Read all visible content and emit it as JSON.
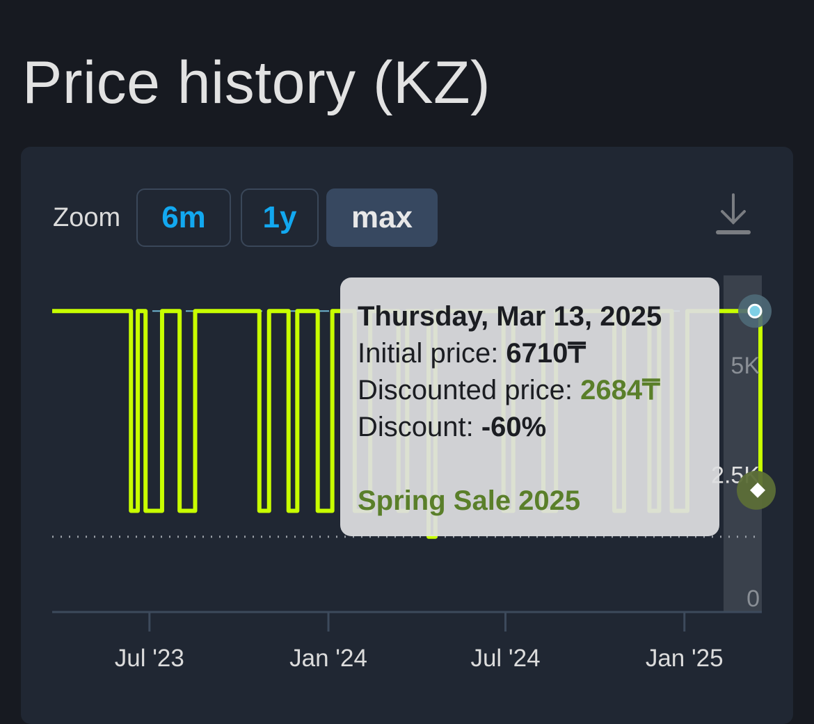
{
  "page_title": "Price history (KZ)",
  "toolbar": {
    "zoom_label": "Zoom",
    "buttons": [
      {
        "label": "6m",
        "active": false
      },
      {
        "label": "1y",
        "active": false
      },
      {
        "label": "max",
        "active": true
      }
    ],
    "download_icon": "download-icon"
  },
  "colors": {
    "line": "#c8ff00",
    "accent": "#12a8f0",
    "discount_green": "#5a7f2a",
    "background": "#171a21",
    "card": "#202733"
  },
  "tooltip": {
    "date": "Thursday, Mar 13, 2025",
    "initial_label": "Initial price: ",
    "initial_value": "6710₸",
    "discounted_label": "Discounted price: ",
    "discounted_value": "2684₸",
    "discount_label": "Discount: ",
    "discount_value": "-60%",
    "event": "Spring Sale 2025"
  },
  "chart_data": {
    "type": "line",
    "step": true,
    "currency": "₸",
    "x_range": [
      "2023-03-23",
      "2025-03-13"
    ],
    "ylim": [
      0,
      7000
    ],
    "y_ticks": [
      {
        "value": 0,
        "label": "0"
      },
      {
        "value": 2500,
        "label": "2.5K"
      },
      {
        "value": 5000,
        "label": "5K"
      }
    ],
    "x_ticks": [
      {
        "date": "2023-07-01",
        "label": "Jul '23"
      },
      {
        "date": "2024-01-01",
        "label": "Jan '24"
      },
      {
        "date": "2024-07-01",
        "label": "Jul '24"
      },
      {
        "date": "2025-01-01",
        "label": "Jan '25"
      }
    ],
    "regular_price": 6710,
    "lowest_price_line": 1560,
    "sales": [
      {
        "start": "2023-06-12",
        "end": "2023-06-19",
        "price": 2150
      },
      {
        "start": "2023-06-27",
        "end": "2023-07-14",
        "price": 2150
      },
      {
        "start": "2023-08-01",
        "end": "2023-08-17",
        "price": 2150
      },
      {
        "start": "2023-10-22",
        "end": "2023-11-01",
        "price": 2150
      },
      {
        "start": "2023-11-21",
        "end": "2023-11-30",
        "price": 2150
      },
      {
        "start": "2023-12-21",
        "end": "2024-01-05",
        "price": 2150
      },
      {
        "start": "2024-01-28",
        "end": "2024-02-13",
        "price": 2150
      },
      {
        "start": "2024-03-13",
        "end": "2024-03-22",
        "price": 2150
      },
      {
        "start": "2024-04-13",
        "end": "2024-04-20",
        "price": 1560
      },
      {
        "start": "2024-06-29",
        "end": "2024-07-09",
        "price": 2150
      },
      {
        "start": "2024-08-09",
        "end": "2024-08-22",
        "price": 2150
      },
      {
        "start": "2024-10-21",
        "end": "2024-10-31",
        "price": 2150
      },
      {
        "start": "2024-11-26",
        "end": "2024-12-06",
        "price": 2150
      },
      {
        "start": "2024-12-19",
        "end": "2025-01-04",
        "price": 2150
      }
    ],
    "hover": {
      "date": "2025-03-13",
      "initial": 6710,
      "discounted": 2684
    }
  }
}
